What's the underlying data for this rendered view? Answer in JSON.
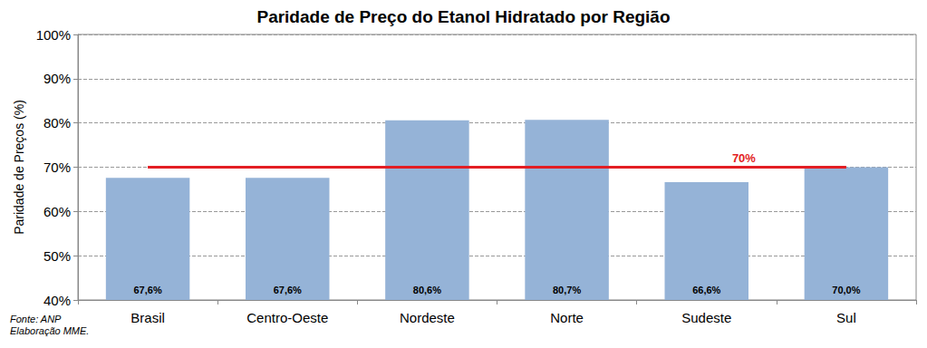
{
  "chart_data": {
    "type": "bar",
    "title": "Paridade de Preço do Etanol Hidratado por Região",
    "ylabel": "Paridade de Preços (%)",
    "categories": [
      "Brasil",
      "Centro-Oeste",
      "Nordeste",
      "Norte",
      "Sudeste",
      "Sul"
    ],
    "values": [
      67.6,
      67.6,
      80.6,
      80.7,
      66.6,
      70.0
    ],
    "value_labels": [
      "67,6%",
      "67,6%",
      "80,6%",
      "80,7%",
      "66,6%",
      "70,0%"
    ],
    "data_labels": true,
    "color": "#95b3d7",
    "ylim": [
      40,
      100
    ],
    "yticks": [
      {
        "value": 40,
        "label": "40%"
      },
      {
        "value": 50,
        "label": "50%"
      },
      {
        "value": 60,
        "label": "60%"
      },
      {
        "value": 70,
        "label": "70%"
      },
      {
        "value": 80,
        "label": "80%"
      },
      {
        "value": 90,
        "label": "90%"
      },
      {
        "value": 100,
        "label": "100%"
      }
    ],
    "grid": true,
    "reference_line": {
      "value": 70,
      "label": "70%",
      "color": "#e31e24"
    },
    "source": [
      "Fonte: ANP",
      "Elaboração MME."
    ]
  }
}
